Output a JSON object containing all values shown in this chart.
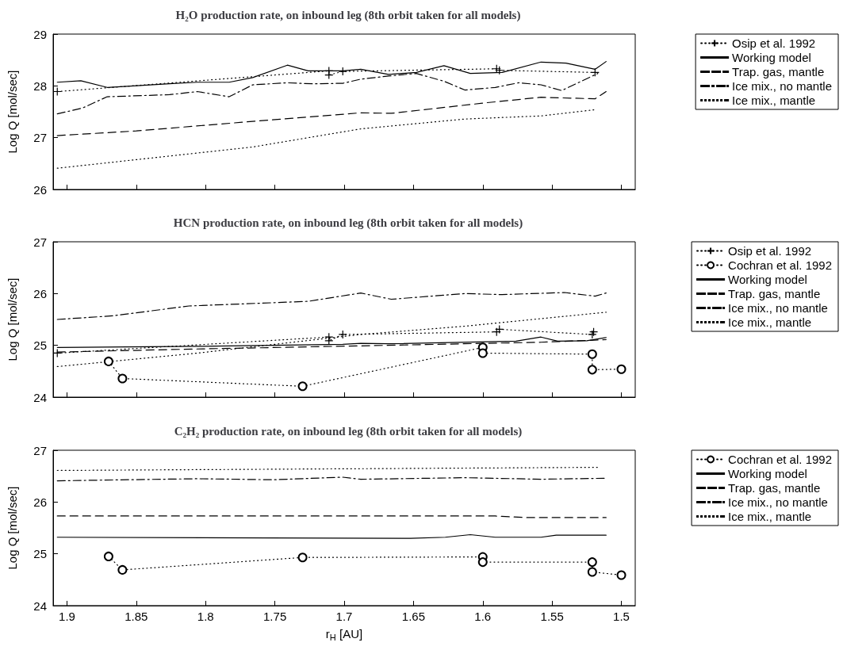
{
  "chart_data": [
    {
      "type": "line",
      "title": "H₂O production rate, on inbound leg (8th orbit taken for all models)",
      "ylabel": "Log Q [mol/sec]",
      "xlim": [
        1.91,
        1.49
      ],
      "xticks": [
        1.9,
        1.85,
        1.8,
        1.75,
        1.7,
        1.65,
        1.6,
        1.55,
        1.5
      ],
      "ylim": [
        26,
        29
      ],
      "yticks": [
        26,
        27,
        28,
        29
      ],
      "tick_labels": "y",
      "legend": "top right",
      "series": [
        {
          "name": "Osip et al. 1992",
          "color": "#000000",
          "marker": "cross",
          "line_style": "dotted",
          "x": [
            1.907,
            1.711,
            1.711,
            1.701,
            1.59,
            1.588,
            1.519
          ],
          "values": [
            27.89,
            28.29,
            28.21,
            28.28,
            28.33,
            28.3,
            28.26
          ]
        },
        {
          "name": "Working model",
          "color": "#000000",
          "line_style": "solid",
          "x": [
            1.907,
            1.89,
            1.871,
            1.826,
            1.806,
            1.783,
            1.766,
            1.741,
            1.726,
            1.701,
            1.688,
            1.668,
            1.648,
            1.628,
            1.609,
            1.586,
            1.558,
            1.54,
            1.519,
            1.511
          ],
          "values": [
            28.07,
            28.1,
            27.97,
            28.04,
            28.07,
            28.07,
            28.16,
            28.4,
            28.29,
            28.29,
            28.32,
            28.22,
            28.26,
            28.39,
            28.24,
            28.26,
            28.46,
            28.44,
            28.32,
            28.47
          ]
        },
        {
          "name": "Trap. gas, mantle",
          "color": "#000000",
          "line_style": "dashed",
          "x": [
            1.907,
            1.85,
            1.768,
            1.688,
            1.666,
            1.599,
            1.558,
            1.519,
            1.511
          ],
          "values": [
            27.04,
            27.13,
            27.31,
            27.48,
            27.47,
            27.67,
            27.78,
            27.75,
            27.89
          ]
        },
        {
          "name": "Ice mix., no mantle",
          "color": "#000000",
          "line_style": "dashdot",
          "x": [
            1.907,
            1.889,
            1.871,
            1.826,
            1.806,
            1.783,
            1.766,
            1.741,
            1.723,
            1.701,
            1.688,
            1.668,
            1.648,
            1.628,
            1.613,
            1.591,
            1.574,
            1.558,
            1.543,
            1.517
          ],
          "values": [
            27.46,
            27.57,
            27.79,
            27.83,
            27.89,
            27.79,
            28.02,
            28.06,
            28.04,
            28.05,
            28.13,
            28.19,
            28.24,
            28.09,
            27.92,
            27.97,
            28.06,
            28.02,
            27.91,
            28.24
          ]
        },
        {
          "name": "Ice mix., mantle",
          "color": "#000000",
          "line_style": "dotted",
          "x": [
            1.907,
            1.766,
            1.688,
            1.613,
            1.558,
            1.519
          ],
          "values": [
            26.41,
            26.82,
            27.17,
            27.36,
            27.42,
            27.54
          ]
        }
      ]
    },
    {
      "type": "line",
      "title": "HCN production rate, on inbound leg (8th orbit taken for all models)",
      "ylabel": "Log Q [mol/sec]",
      "xlim": [
        1.91,
        1.49
      ],
      "xticks": [
        1.9,
        1.85,
        1.8,
        1.75,
        1.7,
        1.65,
        1.6,
        1.55,
        1.5
      ],
      "ylim": [
        24,
        27
      ],
      "yticks": [
        24,
        25,
        26,
        27
      ],
      "tick_labels": "y",
      "legend": "top right",
      "series": [
        {
          "name": "Osip et al. 1992",
          "color": "#000000",
          "marker": "cross",
          "line_style": "dotted",
          "x": [
            1.907,
            1.711,
            1.711,
            1.701,
            1.59,
            1.588,
            1.521,
            1.52
          ],
          "values": [
            24.85,
            25.16,
            25.09,
            25.21,
            25.26,
            25.31,
            25.21,
            25.26
          ]
        },
        {
          "name": "Cochran et al. 1992",
          "color": "#000000",
          "marker": "circle",
          "line_style": "dotted",
          "x": [
            1.87,
            1.86,
            1.73,
            1.6,
            1.6,
            1.521,
            1.521,
            1.5
          ],
          "values": [
            24.69,
            24.36,
            24.21,
            24.96,
            24.85,
            24.83,
            24.53,
            24.54
          ]
        },
        {
          "name": "Working model",
          "color": "#000000",
          "line_style": "solid",
          "x": [
            1.907,
            1.806,
            1.701,
            1.688,
            1.668,
            1.576,
            1.558,
            1.546,
            1.525,
            1.511
          ],
          "values": [
            24.96,
            24.98,
            25.02,
            25.04,
            25.03,
            25.08,
            25.16,
            25.08,
            25.09,
            25.15
          ]
        },
        {
          "name": "Trap. gas, mantle",
          "color": "#000000",
          "line_style": "dashed",
          "x": [
            1.907,
            1.806,
            1.688,
            1.558,
            1.511
          ],
          "values": [
            24.87,
            24.93,
            24.99,
            25.06,
            25.11
          ]
        },
        {
          "name": "Ice mix., no mantle",
          "color": "#000000",
          "line_style": "dashdot",
          "x": [
            1.907,
            1.867,
            1.812,
            1.726,
            1.688,
            1.666,
            1.613,
            1.586,
            1.541,
            1.519,
            1.511
          ],
          "values": [
            25.5,
            25.57,
            25.76,
            25.85,
            26.01,
            25.89,
            26.0,
            25.98,
            26.02,
            25.95,
            26.01
          ]
        },
        {
          "name": "Ice mix., mantle",
          "color": "#000000",
          "line_style": "dotted",
          "x": [
            1.907,
            1.806,
            1.688,
            1.613,
            1.511
          ],
          "values": [
            24.59,
            24.85,
            25.21,
            25.37,
            25.64
          ]
        }
      ]
    },
    {
      "type": "line",
      "title": "C₂H₂ production rate, on inbound leg (8th orbit taken for all models)",
      "xlabel": "r$_{H}$ [AU]",
      "ylabel": "Log Q [mol/sec]",
      "xlim": [
        1.91,
        1.49
      ],
      "xticks": [
        1.9,
        1.85,
        1.8,
        1.75,
        1.7,
        1.65,
        1.6,
        1.55,
        1.5
      ],
      "ylim": [
        24,
        27
      ],
      "yticks": [
        24,
        25,
        26,
        27
      ],
      "legend": "top right",
      "series": [
        {
          "name": "Cochran et al. 1992",
          "color": "#000000",
          "marker": "circle",
          "line_style": "dotted",
          "x": [
            1.87,
            1.86,
            1.73,
            1.6,
            1.6,
            1.521,
            1.521,
            1.5
          ],
          "values": [
            24.95,
            24.69,
            24.93,
            24.94,
            24.84,
            24.84,
            24.65,
            24.59
          ]
        },
        {
          "name": "Working model",
          "color": "#000000",
          "line_style": "solid",
          "x": [
            1.907,
            1.652,
            1.627,
            1.609,
            1.591,
            1.558,
            1.547,
            1.511
          ],
          "values": [
            25.32,
            25.3,
            25.32,
            25.37,
            25.32,
            25.32,
            25.36,
            25.36
          ]
        },
        {
          "name": "Trap. gas, mantle",
          "color": "#000000",
          "line_style": "dashed",
          "x": [
            1.907,
            1.591,
            1.569,
            1.511
          ],
          "values": [
            25.73,
            25.73,
            25.7,
            25.7
          ]
        },
        {
          "name": "Ice mix., no mantle",
          "color": "#000000",
          "line_style": "dashdot",
          "x": [
            1.907,
            1.806,
            1.751,
            1.701,
            1.688,
            1.613,
            1.558,
            1.511
          ],
          "values": [
            26.41,
            26.45,
            26.43,
            26.48,
            26.44,
            26.47,
            26.44,
            26.46
          ]
        },
        {
          "name": "Ice mix., mantle",
          "color": "#000000",
          "line_style": "dotted",
          "x": [
            1.907,
            1.517
          ],
          "values": [
            26.61,
            26.67
          ]
        }
      ]
    }
  ]
}
